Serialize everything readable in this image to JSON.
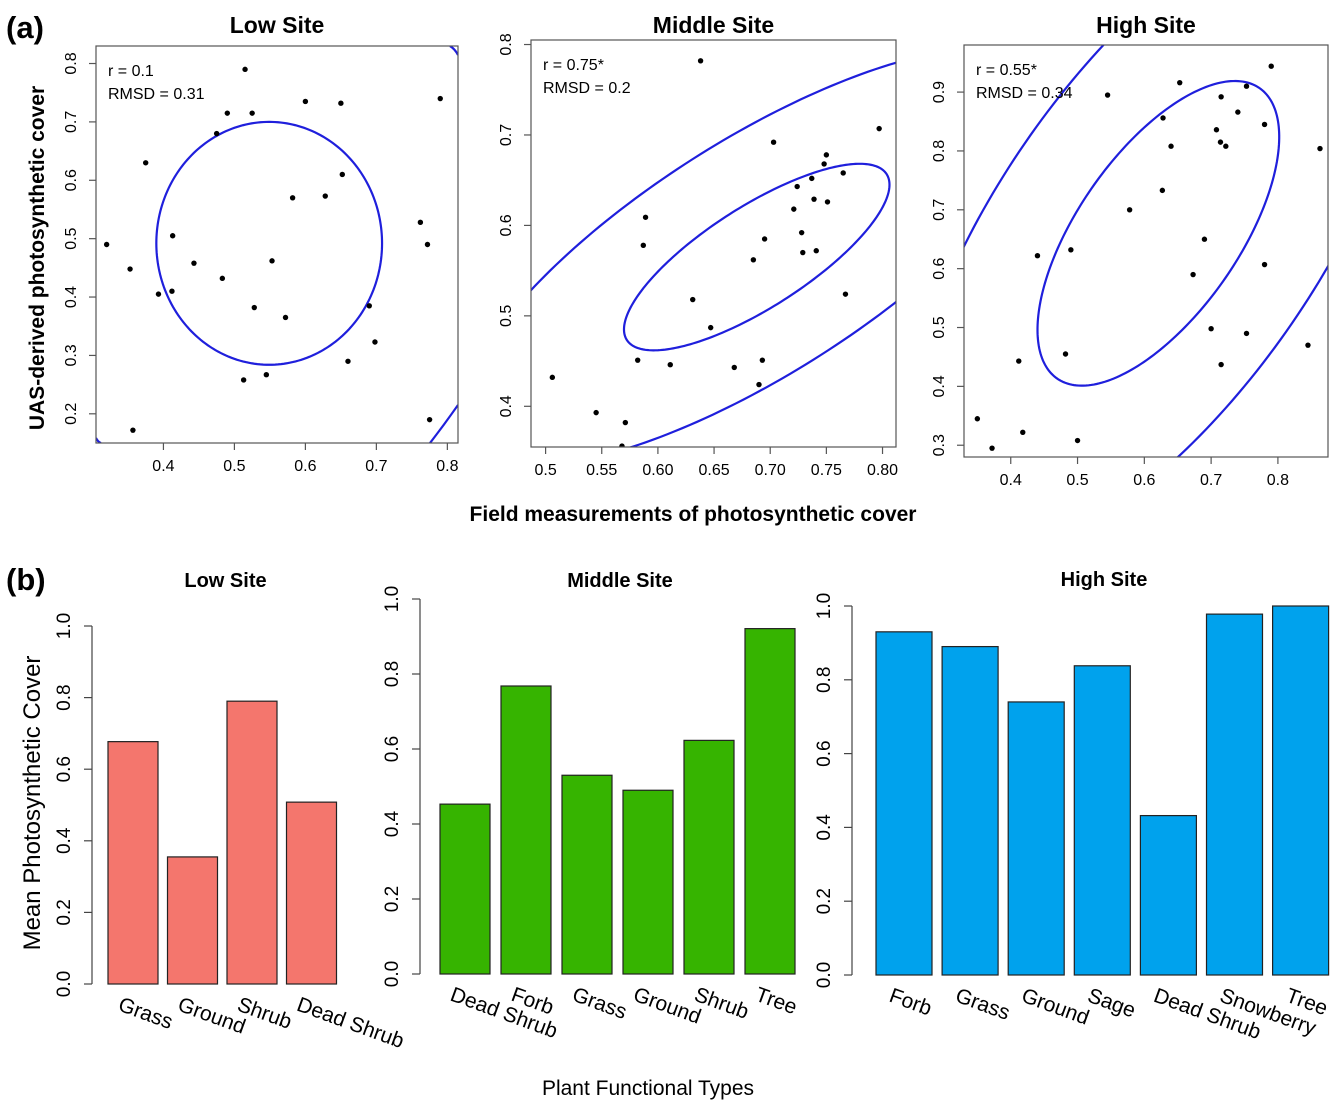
{
  "figure": {
    "panel_a_label": "(a)",
    "panel_b_label": "(b)",
    "colors": {
      "ellipse": "#1f1fdc",
      "points": "#000000",
      "low_bar": "#f4766d",
      "mid_bar": "#36b400",
      "high_bar": "#00a2ed"
    }
  },
  "chart_data": [
    {
      "type": "scatter",
      "panel": "a",
      "title": "Low Site",
      "xlabel": "",
      "ylabel": "UAS-derived photosynthetic cover",
      "xlim": [
        0.305,
        0.815
      ],
      "ylim": [
        0.15,
        0.83
      ],
      "xticks": [
        0.4,
        0.5,
        0.6,
        0.7,
        0.8
      ],
      "yticks": [
        0.2,
        0.3,
        0.4,
        0.5,
        0.6,
        0.7,
        0.8
      ],
      "stat_r": "r = 0.1",
      "stat_rmsd": "RMSD = 0.31",
      "ellipse": {
        "cx": 0.549,
        "cy": 0.492,
        "rx": 0.159,
        "ry": 0.208,
        "rotate_deg": 0
      },
      "corner_arcs": true,
      "points": [
        [
          0.515,
          0.79
        ],
        [
          0.375,
          0.63
        ],
        [
          0.49,
          0.715
        ],
        [
          0.525,
          0.715
        ],
        [
          0.475,
          0.68
        ],
        [
          0.6,
          0.735
        ],
        [
          0.65,
          0.732
        ],
        [
          0.79,
          0.74
        ],
        [
          0.652,
          0.61
        ],
        [
          0.628,
          0.573
        ],
        [
          0.582,
          0.57
        ],
        [
          0.32,
          0.49
        ],
        [
          0.413,
          0.505
        ],
        [
          0.762,
          0.528
        ],
        [
          0.772,
          0.49
        ],
        [
          0.353,
          0.448
        ],
        [
          0.553,
          0.462
        ],
        [
          0.443,
          0.458
        ],
        [
          0.483,
          0.432
        ],
        [
          0.393,
          0.405
        ],
        [
          0.412,
          0.41
        ],
        [
          0.528,
          0.382
        ],
        [
          0.572,
          0.365
        ],
        [
          0.69,
          0.385
        ],
        [
          0.698,
          0.323
        ],
        [
          0.66,
          0.29
        ],
        [
          0.513,
          0.258
        ],
        [
          0.545,
          0.267
        ],
        [
          0.357,
          0.172
        ],
        [
          0.775,
          0.19
        ]
      ]
    },
    {
      "type": "scatter",
      "panel": "a",
      "title": "Middle Site",
      "xlabel": "Field measurements of photosynthetic cover",
      "ylabel": "",
      "xlim": [
        0.487,
        0.812
      ],
      "ylim": [
        0.355,
        0.805
      ],
      "xticks": [
        0.5,
        0.55,
        0.6,
        0.65,
        0.7,
        0.75,
        0.8
      ],
      "yticks": [
        0.4,
        0.5,
        0.6,
        0.7,
        0.8
      ],
      "stat_r": "r = 0.75*",
      "stat_rmsd": "RMSD = 0.2",
      "ellipse": {
        "cx": 0.688,
        "cy": 0.565,
        "major": 0.148,
        "minor": 0.052,
        "rotate_deg": 40
      },
      "outer_ellipse": {
        "cx": 0.688,
        "cy": 0.565,
        "major": 0.33,
        "minor": 0.12,
        "rotate_deg": 40
      },
      "points": [
        [
          0.638,
          0.782
        ],
        [
          0.797,
          0.707
        ],
        [
          0.703,
          0.692
        ],
        [
          0.75,
          0.678
        ],
        [
          0.748,
          0.668
        ],
        [
          0.737,
          0.652
        ],
        [
          0.765,
          0.658
        ],
        [
          0.724,
          0.643
        ],
        [
          0.739,
          0.629
        ],
        [
          0.751,
          0.626
        ],
        [
          0.721,
          0.618
        ],
        [
          0.728,
          0.592
        ],
        [
          0.589,
          0.609
        ],
        [
          0.695,
          0.585
        ],
        [
          0.587,
          0.578
        ],
        [
          0.729,
          0.57
        ],
        [
          0.741,
          0.572
        ],
        [
          0.685,
          0.562
        ],
        [
          0.631,
          0.518
        ],
        [
          0.767,
          0.524
        ],
        [
          0.647,
          0.487
        ],
        [
          0.582,
          0.451
        ],
        [
          0.611,
          0.446
        ],
        [
          0.668,
          0.443
        ],
        [
          0.693,
          0.451
        ],
        [
          0.69,
          0.424
        ],
        [
          0.506,
          0.432
        ],
        [
          0.545,
          0.393
        ],
        [
          0.571,
          0.382
        ],
        [
          0.568,
          0.356
        ]
      ]
    },
    {
      "type": "scatter",
      "panel": "a",
      "title": "High Site",
      "xlabel": "",
      "ylabel": "",
      "xlim": [
        0.33,
        0.875
      ],
      "ylim": [
        0.28,
        0.98
      ],
      "xticks": [
        0.4,
        0.5,
        0.6,
        0.7,
        0.8
      ],
      "yticks": [
        0.3,
        0.4,
        0.5,
        0.6,
        0.7,
        0.8,
        0.9
      ],
      "stat_r": "r = 0.55*",
      "stat_rmsd": "RMSD = 0.34",
      "ellipse": {
        "cx": 0.621,
        "cy": 0.66,
        "major": 0.29,
        "minor": 0.125,
        "rotate_deg": 60
      },
      "outer_ellipse": {
        "cx": 0.621,
        "cy": 0.66,
        "major": 0.62,
        "minor": 0.25,
        "rotate_deg": 60
      },
      "points": [
        [
          0.79,
          0.944
        ],
        [
          0.653,
          0.916
        ],
        [
          0.753,
          0.91
        ],
        [
          0.545,
          0.895
        ],
        [
          0.715,
          0.892
        ],
        [
          0.74,
          0.866
        ],
        [
          0.628,
          0.856
        ],
        [
          0.708,
          0.836
        ],
        [
          0.78,
          0.845
        ],
        [
          0.714,
          0.815
        ],
        [
          0.722,
          0.808
        ],
        [
          0.64,
          0.808
        ],
        [
          0.863,
          0.804
        ],
        [
          0.627,
          0.733
        ],
        [
          0.578,
          0.7
        ],
        [
          0.69,
          0.65
        ],
        [
          0.49,
          0.632
        ],
        [
          0.44,
          0.622
        ],
        [
          0.78,
          0.607
        ],
        [
          0.673,
          0.59
        ],
        [
          0.7,
          0.498
        ],
        [
          0.753,
          0.49
        ],
        [
          0.845,
          0.47
        ],
        [
          0.482,
          0.455
        ],
        [
          0.412,
          0.443
        ],
        [
          0.715,
          0.437
        ],
        [
          0.35,
          0.345
        ],
        [
          0.418,
          0.322
        ],
        [
          0.5,
          0.308
        ],
        [
          0.372,
          0.295
        ]
      ]
    },
    {
      "type": "bar",
      "panel": "b",
      "title": "Low Site",
      "xlabel": "",
      "ylabel": "Mean Photosynthetic Cover",
      "ylim": [
        0,
        1.0
      ],
      "yticks": [
        "0.0",
        "0.2",
        "0.4",
        "0.6",
        "0.8",
        "1.0"
      ],
      "categories": [
        "Grass",
        "Ground",
        "Shrub",
        "Dead Shrub"
      ],
      "values": [
        0.677,
        0.355,
        0.79,
        0.508
      ]
    },
    {
      "type": "bar",
      "panel": "b",
      "title": "Middle Site",
      "xlabel": "Plant Functional Types",
      "ylabel": "",
      "ylim": [
        0,
        1.0
      ],
      "yticks": [
        "0.0",
        "0.2",
        "0.4",
        "0.6",
        "0.8",
        "1.0"
      ],
      "categories": [
        "Dead Shrub",
        "Forb",
        "Grass",
        "Ground",
        "Shrub",
        "Tree"
      ],
      "values": [
        0.453,
        0.768,
        0.53,
        0.49,
        0.623,
        0.921
      ]
    },
    {
      "type": "bar",
      "panel": "b",
      "title": "High Site",
      "xlabel": "",
      "ylabel": "",
      "ylim": [
        0,
        1.0
      ],
      "yticks": [
        "0.0",
        "0.2",
        "0.4",
        "0.6",
        "0.8",
        "1.0"
      ],
      "categories": [
        "Forb",
        "Grass",
        "Ground",
        "Sage",
        "Dead Shrub",
        "Snowberry",
        "Tree"
      ],
      "values": [
        0.93,
        0.89,
        0.74,
        0.838,
        0.432,
        0.978,
        1.0
      ]
    }
  ]
}
